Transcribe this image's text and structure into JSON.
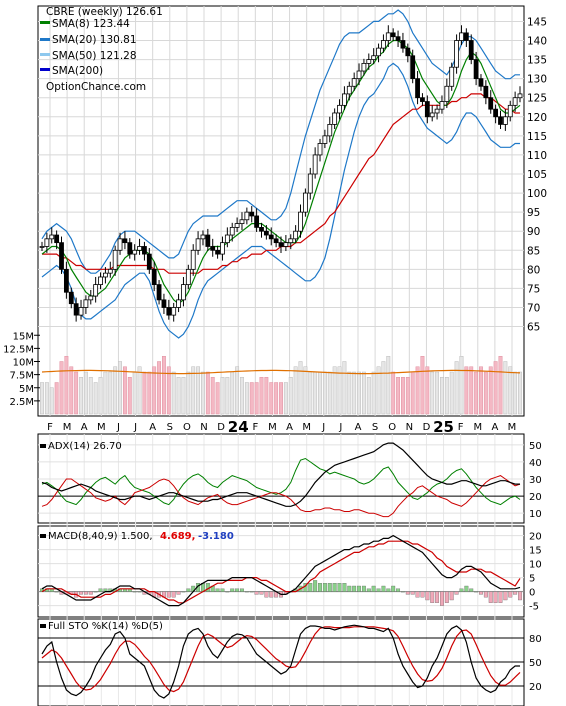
{
  "chart_data": [
    {
      "type": "candlestick",
      "panel": "price",
      "title": "CBRE (weekly) 126.61",
      "watermark": "OptionChance.com",
      "legend": [
        {
          "label": "SMA(8) 123.44",
          "color": "#008000"
        },
        {
          "label": "SMA(20) 130.81",
          "color": "#1e78c8"
        },
        {
          "label": "SMA(50) 121.28",
          "color": "#8ec8ee"
        },
        {
          "label": "SMA(200)",
          "color": "#0000cc"
        }
      ],
      "y_ticks": [
        65,
        70,
        75,
        80,
        85,
        90,
        95,
        100,
        105,
        110,
        115,
        120,
        125,
        130,
        135,
        140,
        145
      ],
      "ylim": [
        62,
        148
      ],
      "x_labels": [
        "F",
        "M",
        "A",
        "M",
        "J",
        "J",
        "A",
        "S",
        "O",
        "N",
        "D",
        "24",
        "F",
        "M",
        "A",
        "M",
        "J",
        "J",
        "A",
        "S",
        "O",
        "N",
        "D",
        "25",
        "F",
        "M",
        "A",
        "M"
      ],
      "closes": [
        86,
        88,
        89,
        87,
        80,
        74,
        71,
        68,
        70,
        72,
        73,
        76,
        78,
        79,
        80,
        85,
        88,
        87,
        84,
        85,
        86,
        84,
        80,
        76,
        72,
        70,
        68,
        70,
        72,
        76,
        80,
        85,
        88,
        89,
        86,
        85,
        84,
        87,
        89,
        91,
        92,
        93,
        95,
        94,
        91,
        90,
        89,
        88,
        87,
        86,
        87,
        88,
        90,
        95,
        100,
        105,
        110,
        113,
        115,
        118,
        121,
        123,
        126,
        128,
        130,
        132,
        134,
        135,
        136,
        138,
        140,
        142,
        141,
        140,
        138,
        136,
        130,
        125,
        124,
        120,
        121,
        122,
        124,
        128,
        133,
        140,
        142,
        140,
        135,
        130,
        128,
        125,
        122,
        120,
        118,
        120,
        123,
        125,
        126
      ],
      "sma8": [
        84,
        85,
        86,
        86,
        85,
        83,
        80,
        78,
        76,
        74,
        73,
        73,
        74,
        75,
        77,
        79,
        81,
        83,
        84,
        85,
        85,
        85,
        84,
        82,
        79,
        76,
        74,
        72,
        71,
        72,
        74,
        77,
        80,
        83,
        85,
        86,
        86,
        86,
        87,
        88,
        89,
        90,
        91,
        92,
        92,
        92,
        91,
        90,
        89,
        88,
        87,
        87,
        87,
        89,
        92,
        96,
        100,
        104,
        108,
        112,
        116,
        119,
        122,
        125,
        127,
        129,
        131,
        133,
        134,
        136,
        137,
        139,
        140,
        140,
        139,
        138,
        136,
        133,
        130,
        128,
        126,
        124,
        123,
        123,
        125,
        128,
        132,
        135,
        137,
        136,
        134,
        131,
        128,
        125,
        122,
        121,
        121,
        122,
        123
      ],
      "bb_upper": [
        88,
        90,
        91,
        92,
        91,
        90,
        88,
        85,
        82,
        80,
        79,
        79,
        80,
        82,
        84,
        87,
        89,
        90,
        90,
        90,
        89,
        88,
        87,
        86,
        85,
        84,
        83,
        83,
        84,
        87,
        90,
        92,
        93,
        94,
        94,
        94,
        94,
        95,
        96,
        97,
        98,
        98,
        98,
        97,
        96,
        95,
        94,
        93,
        93,
        94,
        96,
        100,
        105,
        110,
        115,
        119,
        123,
        127,
        130,
        133,
        136,
        139,
        141,
        142,
        142,
        142,
        143,
        144,
        145,
        145,
        146,
        147,
        147,
        148,
        147,
        145,
        142,
        140,
        138,
        136,
        134,
        133,
        132,
        131,
        133,
        136,
        139,
        141,
        141,
        140,
        138,
        136,
        134,
        132,
        131,
        130,
        130,
        131,
        131
      ],
      "bb_lower": [
        78,
        79,
        80,
        81,
        80,
        78,
        75,
        71,
        68,
        67,
        67,
        68,
        69,
        70,
        71,
        72,
        74,
        76,
        77,
        78,
        79,
        79,
        77,
        73,
        69,
        66,
        64,
        63,
        62,
        63,
        65,
        68,
        72,
        75,
        77,
        78,
        79,
        80,
        81,
        82,
        83,
        84,
        85,
        86,
        86,
        86,
        85,
        84,
        83,
        82,
        81,
        80,
        79,
        78,
        77,
        77,
        78,
        80,
        83,
        88,
        94,
        100,
        106,
        111,
        116,
        120,
        123,
        125,
        126,
        128,
        130,
        133,
        134,
        133,
        131,
        128,
        124,
        121,
        119,
        117,
        116,
        115,
        114,
        113,
        114,
        116,
        119,
        121,
        121,
        120,
        118,
        116,
        114,
        113,
        112,
        112,
        112,
        113,
        113
      ],
      "sma50": [
        84,
        84,
        84,
        84,
        83,
        83,
        82,
        81,
        81,
        80,
        80,
        80,
        80,
        80,
        80,
        81,
        81,
        81,
        81,
        81,
        81,
        81,
        81,
        80,
        80,
        80,
        79,
        79,
        79,
        79,
        79,
        79,
        79,
        80,
        80,
        80,
        80,
        81,
        81,
        82,
        82,
        83,
        83,
        84,
        84,
        84,
        85,
        85,
        85,
        86,
        86,
        86,
        87,
        87,
        88,
        89,
        90,
        91,
        92,
        94,
        95,
        97,
        99,
        101,
        103,
        105,
        107,
        109,
        110,
        112,
        114,
        116,
        118,
        119,
        120,
        121,
        122,
        122,
        123,
        123,
        123,
        123,
        123,
        123,
        124,
        124,
        125,
        125,
        126,
        126,
        126,
        125,
        125,
        124,
        123,
        122,
        122,
        121,
        121
      ],
      "sma200": [
        0
      ]
    },
    {
      "type": "bar",
      "panel": "volume",
      "y_ticks": [
        "15M",
        "12.5M",
        "10M",
        "7.5M",
        "5M",
        "2.5M"
      ],
      "ylim": [
        0,
        16
      ],
      "values": [
        6,
        6,
        5,
        6,
        10,
        11,
        9,
        8,
        7,
        8,
        7,
        6,
        7,
        8,
        8,
        9,
        10,
        9,
        7,
        8,
        9,
        8,
        8,
        9,
        10,
        11,
        9,
        8,
        7,
        7,
        8,
        9,
        9,
        8,
        8,
        7,
        6,
        7,
        7,
        8,
        9,
        7,
        6,
        6,
        6,
        7,
        7,
        6,
        6,
        6,
        6,
        7,
        9,
        10,
        9,
        8,
        8,
        8,
        8,
        8,
        9,
        9,
        10,
        8,
        8,
        8,
        8,
        7,
        8,
        9,
        10,
        11,
        8,
        7,
        7,
        7,
        8,
        9,
        11,
        9,
        8,
        8,
        7,
        7,
        8,
        10,
        11,
        9,
        9,
        8,
        9,
        8,
        9,
        10,
        11,
        10,
        9,
        8,
        8
      ],
      "average": 8
    },
    {
      "type": "line",
      "panel": "adx",
      "label": "ADX(14) 26.70",
      "y_ticks": [
        10,
        20,
        30,
        40,
        50
      ],
      "ylim": [
        6,
        54
      ],
      "adx": [
        28,
        27,
        25,
        24,
        23,
        24,
        25,
        26,
        27,
        26,
        25,
        23,
        22,
        21,
        20,
        19,
        18,
        18,
        19,
        20,
        20,
        19,
        18,
        19,
        20,
        21,
        22,
        22,
        21,
        20,
        19,
        18,
        17,
        17,
        17,
        18,
        18,
        19,
        20,
        21,
        22,
        22,
        22,
        21,
        20,
        19,
        18,
        17,
        16,
        15,
        14,
        14,
        15,
        17,
        20,
        24,
        28,
        31,
        34,
        36,
        38,
        39,
        40,
        41,
        42,
        43,
        44,
        45,
        46,
        48,
        50,
        51,
        51,
        49,
        47,
        44,
        41,
        38,
        35,
        32,
        30,
        29,
        28,
        27,
        27,
        28,
        29,
        29,
        28,
        27,
        26,
        26,
        27,
        28,
        29,
        29,
        28,
        27,
        27
      ],
      "plus_di": [
        27,
        28,
        26,
        24,
        20,
        17,
        16,
        15,
        18,
        22,
        25,
        28,
        30,
        31,
        29,
        27,
        30,
        32,
        28,
        25,
        24,
        23,
        22,
        20,
        18,
        16,
        15,
        18,
        23,
        27,
        30,
        32,
        33,
        31,
        28,
        26,
        25,
        28,
        30,
        32,
        31,
        30,
        29,
        27,
        25,
        24,
        23,
        22,
        21,
        22,
        24,
        28,
        35,
        41,
        42,
        40,
        38,
        36,
        35,
        33,
        34,
        33,
        32,
        31,
        30,
        28,
        27,
        28,
        30,
        33,
        36,
        37,
        33,
        28,
        25,
        22,
        19,
        18,
        20,
        22,
        25,
        27,
        28,
        30,
        33,
        35,
        36,
        33,
        29,
        25,
        22,
        19,
        17,
        16,
        15,
        17,
        19,
        20,
        18
      ],
      "minus_di": [
        14,
        15,
        18,
        22,
        26,
        30,
        30,
        28,
        26,
        24,
        22,
        19,
        18,
        17,
        18,
        20,
        17,
        15,
        18,
        22,
        23,
        24,
        25,
        27,
        29,
        30,
        29,
        26,
        22,
        19,
        17,
        16,
        15,
        17,
        19,
        20,
        21,
        18,
        16,
        15,
        15,
        16,
        17,
        18,
        19,
        20,
        21,
        22,
        22,
        21,
        20,
        18,
        15,
        12,
        11,
        11,
        12,
        12,
        13,
        13,
        12,
        12,
        11,
        11,
        12,
        12,
        11,
        10,
        10,
        9,
        8,
        8,
        10,
        14,
        17,
        20,
        22,
        25,
        26,
        24,
        22,
        20,
        19,
        18,
        16,
        15,
        14,
        16,
        19,
        22,
        25,
        28,
        30,
        31,
        32,
        30,
        28,
        26,
        27
      ]
    },
    {
      "type": "line",
      "panel": "macd",
      "label": "MACD(8,40,9) 1.500,",
      "label_signal": "4.689,",
      "label_hist": "-3.180",
      "y_ticks": [
        -5,
        0,
        5,
        10,
        15,
        20
      ],
      "ylim": [
        -8,
        22
      ],
      "macd": [
        1,
        2,
        2,
        1,
        0,
        -1,
        -2,
        -3,
        -3,
        -3,
        -3,
        -2,
        -1,
        0,
        0,
        1,
        2,
        2,
        2,
        1,
        1,
        0,
        -1,
        -2,
        -3,
        -4,
        -5,
        -5,
        -5,
        -4,
        -2,
        0,
        2,
        3,
        4,
        4,
        4,
        4,
        4,
        5,
        5,
        5,
        5,
        5,
        4,
        3,
        2,
        1,
        0,
        -1,
        -1,
        0,
        1,
        3,
        5,
        7,
        9,
        10,
        11,
        12,
        13,
        14,
        15,
        15,
        16,
        16,
        17,
        17,
        18,
        18,
        19,
        19,
        20,
        19,
        18,
        17,
        16,
        15,
        14,
        12,
        10,
        8,
        6,
        5,
        5,
        6,
        8,
        9,
        9,
        8,
        7,
        5,
        3,
        2,
        1,
        1,
        1,
        1,
        1.5
      ],
      "signal": [
        0,
        1,
        1,
        1,
        1,
        0,
        -1,
        -1,
        -2,
        -2,
        -2,
        -2,
        -2,
        -1,
        -1,
        0,
        1,
        1,
        1,
        1,
        1,
        1,
        0,
        0,
        -1,
        -2,
        -3,
        -3,
        -4,
        -4,
        -3,
        -2,
        -1,
        0,
        1,
        2,
        3,
        3,
        4,
        4,
        4,
        4,
        5,
        5,
        5,
        4,
        4,
        3,
        2,
        1,
        0,
        0,
        0,
        1,
        2,
        4,
        5,
        7,
        8,
        9,
        10,
        11,
        12,
        13,
        14,
        14,
        15,
        16,
        16,
        17,
        17,
        18,
        18,
        18,
        18,
        18,
        17,
        17,
        16,
        15,
        14,
        12,
        11,
        9,
        8,
        7,
        7,
        7,
        8,
        8,
        8,
        7,
        7,
        6,
        5,
        4,
        3,
        2,
        4.7
      ],
      "histogram": [
        1,
        1,
        1,
        0,
        -1,
        -1,
        -1,
        -2,
        -1,
        -1,
        -1,
        0,
        1,
        1,
        1,
        1,
        1,
        1,
        1,
        0,
        0,
        -1,
        -1,
        -2,
        -2,
        -2,
        -2,
        -2,
        -1,
        0,
        1,
        2,
        3,
        3,
        3,
        2,
        1,
        1,
        0,
        1,
        1,
        1,
        0,
        0,
        -1,
        -1,
        -2,
        -2,
        -2,
        -2,
        -1,
        0,
        1,
        2,
        3,
        3,
        4,
        3,
        3,
        3,
        3,
        3,
        3,
        2,
        2,
        2,
        2,
        1,
        2,
        1,
        2,
        1,
        2,
        1,
        0,
        -1,
        -1,
        -2,
        -2,
        -3,
        -4,
        -4,
        -5,
        -4,
        -3,
        -1,
        1,
        2,
        1,
        0,
        -1,
        -2,
        -4,
        -4,
        -4,
        -3,
        -2,
        -1,
        -3
      ]
    },
    {
      "type": "line",
      "panel": "stochastic",
      "label": "Full STO %K(14) %D(5)",
      "y_ticks": [
        20,
        50,
        80
      ],
      "ylim": [
        0,
        100
      ],
      "k": [
        60,
        70,
        75,
        50,
        30,
        15,
        10,
        8,
        12,
        20,
        30,
        45,
        55,
        65,
        72,
        85,
        88,
        80,
        60,
        55,
        50,
        45,
        30,
        15,
        8,
        5,
        10,
        25,
        45,
        70,
        85,
        90,
        92,
        85,
        70,
        60,
        55,
        65,
        75,
        82,
        85,
        84,
        80,
        70,
        60,
        55,
        50,
        45,
        40,
        35,
        38,
        45,
        65,
        85,
        92,
        95,
        95,
        94,
        92,
        92,
        90,
        92,
        94,
        95,
        96,
        95,
        94,
        92,
        92,
        90,
        88,
        92,
        80,
        60,
        45,
        35,
        25,
        18,
        20,
        30,
        45,
        55,
        70,
        85,
        92,
        95,
        90,
        75,
        50,
        30,
        20,
        15,
        12,
        15,
        25,
        30,
        40,
        45,
        45
      ],
      "d": [
        55,
        60,
        65,
        62,
        55,
        45,
        35,
        25,
        18,
        15,
        16,
        21,
        28,
        38,
        48,
        60,
        70,
        76,
        76,
        72,
        65,
        57,
        51,
        42,
        32,
        22,
        15,
        13,
        16,
        25,
        40,
        55,
        70,
        82,
        85,
        82,
        77,
        72,
        68,
        70,
        75,
        80,
        83,
        82,
        78,
        72,
        66,
        60,
        54,
        50,
        45,
        43,
        44,
        52,
        63,
        75,
        85,
        92,
        94,
        94,
        93,
        93,
        93,
        93,
        94,
        94,
        94,
        94,
        94,
        93,
        92,
        91,
        89,
        82,
        70,
        57,
        45,
        35,
        28,
        26,
        27,
        33,
        42,
        55,
        70,
        82,
        89,
        90,
        85,
        72,
        58,
        45,
        33,
        25,
        21,
        21,
        25,
        31,
        37
      ]
    }
  ]
}
